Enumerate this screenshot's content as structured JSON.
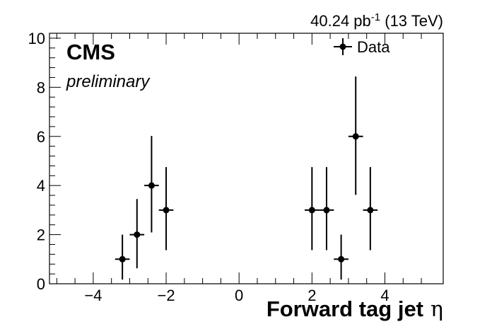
{
  "header": {
    "lumi_value": "40.24 pb",
    "lumi_exponent": "-1",
    "energy": "(13 TeV)"
  },
  "labels": {
    "experiment": "CMS",
    "status": "preliminary"
  },
  "chart_data": {
    "type": "scatter",
    "title": "",
    "xlabel": "Forward tag jet",
    "xlabel_symbol": "η",
    "ylabel": "",
    "xlim": [
      -5.2,
      5.6
    ],
    "ylim": [
      0,
      10.2
    ],
    "x_ticks": [
      -4,
      -2,
      0,
      2,
      4
    ],
    "x_tick_labels": [
      "−4",
      "−2",
      "0",
      "2",
      "4"
    ],
    "y_ticks": [
      0,
      2,
      4,
      6,
      8,
      10
    ],
    "y_tick_labels": [
      "0",
      "2",
      "4",
      "6",
      "8",
      "10"
    ],
    "grid": false,
    "legend": {
      "position": "top-right",
      "entries": [
        "Data"
      ]
    },
    "series": [
      {
        "name": "Data",
        "marker": "circle",
        "color": "#000000",
        "x": [
          -3.2,
          -2.8,
          -2.4,
          -2.0,
          2.0,
          2.4,
          2.8,
          3.2,
          3.6
        ],
        "y": [
          1,
          2,
          4,
          3,
          3,
          3,
          1,
          6,
          3
        ],
        "x_err": [
          0.2,
          0.2,
          0.2,
          0.2,
          0.2,
          0.2,
          0.2,
          0.2,
          0.2
        ],
        "y_err_low": [
          0.83,
          1.37,
          1.91,
          1.63,
          1.63,
          1.63,
          0.83,
          2.38,
          1.63
        ],
        "y_err_high": [
          1.0,
          1.45,
          2.02,
          1.75,
          1.75,
          1.75,
          1.0,
          2.44,
          1.75
        ]
      }
    ]
  }
}
